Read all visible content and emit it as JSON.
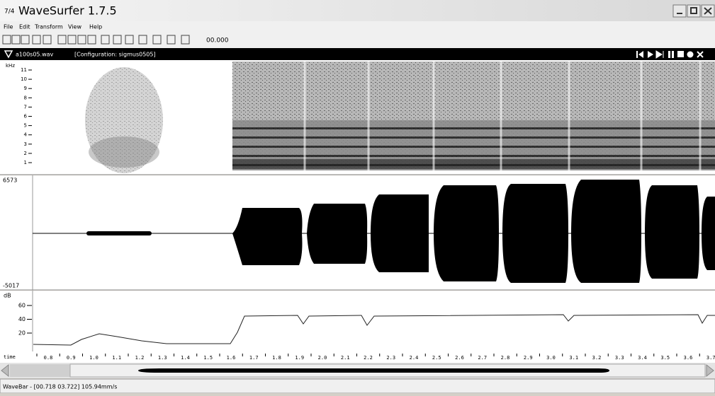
{
  "window": {
    "title": "WaveSurfer 1.7.5"
  },
  "menu": [
    "File",
    "Edit",
    "Transform",
    "View",
    "Help"
  ],
  "toolbar": {
    "time": "00.000"
  },
  "sound": {
    "file": "a100s05.wav",
    "configuration": "[Configuration: sigmus0505]"
  },
  "spectrogram": {
    "unit": "kHz",
    "ticks": [
      "11",
      "10",
      "9",
      "8",
      "7",
      "6",
      "5",
      "4",
      "3",
      "2",
      "1"
    ]
  },
  "waveform": {
    "max": "6573",
    "min": "-5017"
  },
  "power": {
    "unit": "dB",
    "ticks": [
      "60",
      "40",
      "20"
    ]
  },
  "timeaxis": {
    "label": "time",
    "ticks": [
      "0.8",
      "0.9",
      "1.0",
      "1.1",
      "1.2",
      "1.3",
      "1.4",
      "1.5",
      "1.6",
      "1.7",
      "1.8",
      "1.9",
      "2.0",
      "2.1",
      "2.2",
      "2.3",
      "2.4",
      "2.5",
      "2.6",
      "2.7",
      "2.8",
      "2.9",
      "3.0",
      "3.1",
      "3.2",
      "3.3",
      "3.4",
      "3.5",
      "3.6",
      "3.7"
    ]
  },
  "status": "WaveBar - [00.718 03.722] 105.94mm/s"
}
